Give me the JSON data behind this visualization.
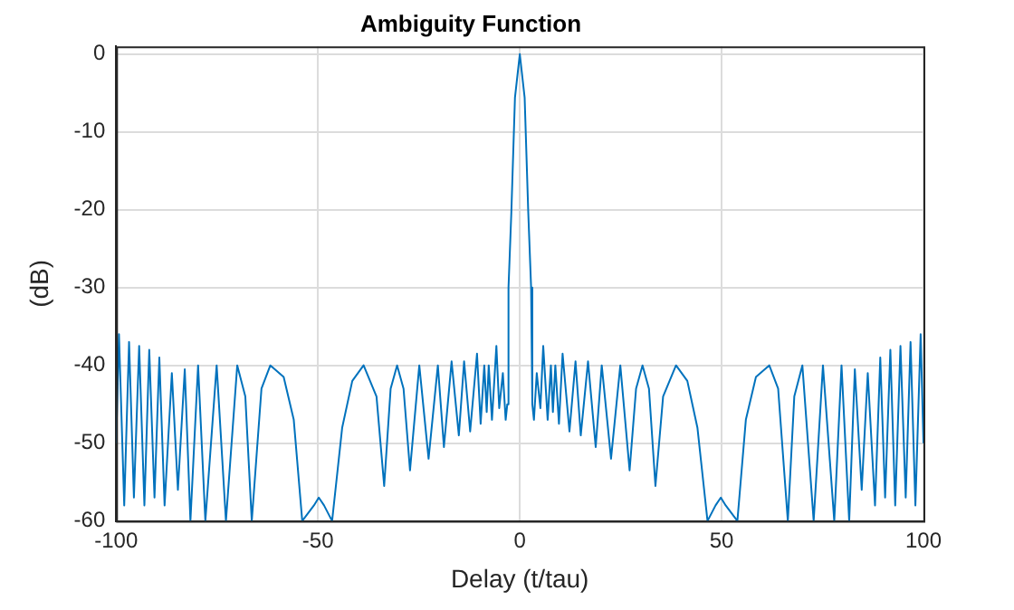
{
  "chart_data": {
    "type": "line",
    "title": "Ambiguity Function",
    "xlabel": "Delay (t/tau)",
    "ylabel": "(dB)",
    "x": [
      -100,
      -99.3,
      -98,
      -96.8,
      -95.6,
      -94.3,
      -93,
      -91.8,
      -90.5,
      -89.3,
      -88,
      -86.2,
      -84.7,
      -83,
      -81.6,
      -79.7,
      -77.9,
      -75.1,
      -72.8,
      -70,
      -68,
      -66.4,
      -64,
      -61.8,
      -58.5,
      -56,
      -53.9,
      -51,
      -49.8,
      -48.5,
      -46.5,
      -44,
      -41.5,
      -38.7,
      -35.5,
      -33.6,
      -32,
      -30.4,
      -28.8,
      -27.2,
      -24.9,
      -22.6,
      -20.3,
      -18.8,
      -16.9,
      -15.1,
      -13.8,
      -12.3,
      -10.6,
      -9.7,
      -8.8,
      -8.2,
      -7.7,
      -6.9,
      -5.8,
      -5.1,
      -4.2,
      -3.5,
      -3.1,
      -2.8,
      -2.1,
      -1.2,
      0,
      1.2,
      2.1,
      2.8,
      3.1,
      3.5,
      4.2,
      5.1,
      5.8,
      6.9,
      7.7,
      8.2,
      8.8,
      9.7,
      10.6,
      12.3,
      13.8,
      15.1,
      16.9,
      18.8,
      20.3,
      22.6,
      24.9,
      27.2,
      28.8,
      30.4,
      32,
      33.6,
      35.5,
      38.7,
      41.5,
      44,
      46.5,
      48.5,
      49.8,
      51,
      53.9,
      56,
      58.5,
      61.8,
      64,
      66.4,
      68,
      70,
      72.8,
      75.1,
      77.9,
      79.7,
      81.6,
      83,
      84.7,
      86.2,
      88,
      89.3,
      90.5,
      91.8,
      93,
      94.3,
      95.6,
      96.8,
      98,
      99.3,
      100
    ],
    "series": [
      {
        "color": "#0072bd",
        "values": [
          -50,
          -36,
          -58,
          -37,
          -57,
          -37.5,
          -58,
          -38,
          -57,
          -39,
          -58,
          -41,
          -56,
          -40.5,
          -60,
          -40,
          -60,
          -40,
          -60,
          -40,
          -44,
          -60,
          -43,
          -40,
          -41.5,
          -47,
          -60,
          -58,
          -57,
          -58,
          -60,
          -48,
          -42,
          -40,
          -44,
          -55.5,
          -43,
          -40,
          -43,
          -53.5,
          -40,
          -52,
          -40,
          -50.5,
          -39.5,
          -49,
          -39.5,
          -48.5,
          -38.5,
          -47.5,
          -40,
          -46,
          -40,
          -47,
          -37.5,
          -45.5,
          -41,
          -47,
          -45,
          -30,
          -20.4,
          -5.6,
          0,
          -5.6,
          -20.4,
          -30,
          -45,
          -47,
          -41,
          -45.5,
          -37.5,
          -47,
          -40,
          -46,
          -40,
          -47.5,
          -38.5,
          -48.5,
          -39.5,
          -49,
          -39.5,
          -50.5,
          -40,
          -52,
          -40,
          -53.5,
          -43,
          -40,
          -43,
          -55.5,
          -44,
          -40,
          -42,
          -48,
          -60,
          -58,
          -57,
          -58,
          -60,
          -47,
          -41.5,
          -40,
          -43,
          -60,
          -44,
          -40,
          -60,
          -40,
          -60,
          -40,
          -60,
          -40.5,
          -56,
          -41,
          -58,
          -39,
          -57,
          -38,
          -58,
          -37.5,
          -57,
          -37,
          -58,
          -36,
          -50
        ]
      }
    ],
    "xlim": [
      -100,
      100
    ],
    "xticks": [
      -100,
      -50,
      0,
      50,
      100
    ],
    "ylim": [
      -60,
      1
    ],
    "yticks": [
      -60,
      -50,
      -40,
      -30,
      -20,
      -10,
      0
    ],
    "grid": true,
    "legend": false,
    "marker": "none",
    "line_style": "solid"
  }
}
